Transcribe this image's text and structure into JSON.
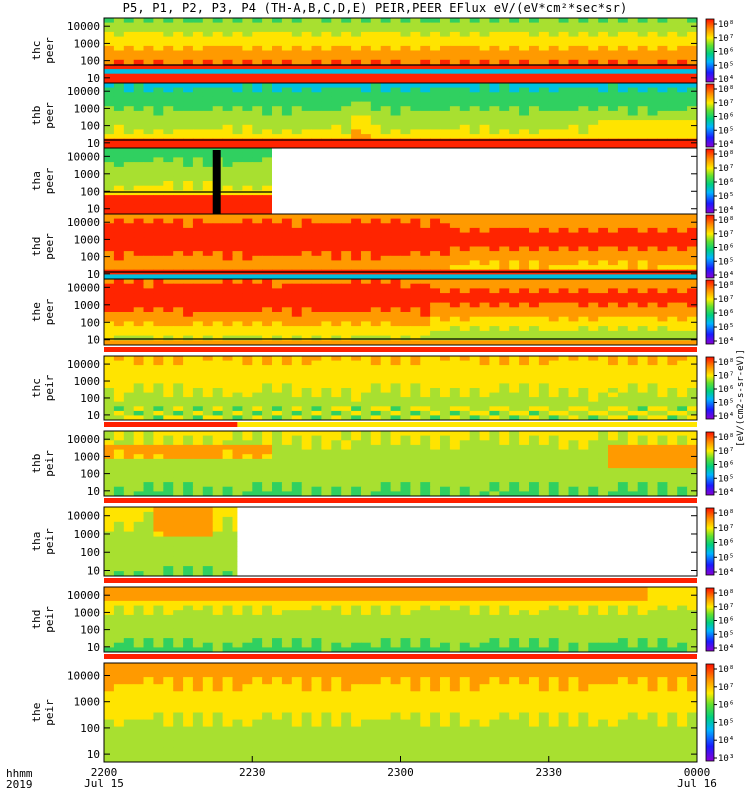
{
  "title": "P5, P1, P2, P3, P4 (TH-A,B,C,D,E) PEIR,PEER EFlux eV/(eV*cm²*sec*sr)",
  "colorbar_units": "[eV/(cm2-s-sr-eV)]",
  "x_axis": {
    "header_row1": "hhmm",
    "header_row2": "2019",
    "ticks": [
      {
        "label": "2200",
        "sub": "Jul 15",
        "t": 0
      },
      {
        "label": "2230",
        "sub": "",
        "t": 30
      },
      {
        "label": "2300",
        "sub": "",
        "t": 60
      },
      {
        "label": "2330",
        "sub": "",
        "t": 90
      },
      {
        "label": "0000",
        "sub": "Jul 16",
        "t": 120
      }
    ]
  },
  "colorbar_ticks": [
    "10⁸",
    "10⁷",
    "10⁶",
    "10⁵",
    "10⁴",
    "10³"
  ],
  "chart_data": {
    "type": "heatmap",
    "x_unit": "minutes after 2019-07-15 22:00 UT",
    "xlim": [
      0,
      120
    ],
    "ylim": [
      5,
      30000
    ],
    "y_scale": "log",
    "y_ticks": [
      "10000",
      "1000",
      "100",
      "10"
    ],
    "panels": [
      {
        "label": [
          "thc",
          "peer"
        ],
        "coverage_end_min": 120,
        "profile": "electron_a",
        "bar": ""
      },
      {
        "label": [
          "thb",
          "peer"
        ],
        "coverage_end_min": 120,
        "profile": "electron_b",
        "bar": ""
      },
      {
        "label": [
          "tha",
          "peer"
        ],
        "coverage_end_min": 34,
        "profile": "electron_c",
        "bar": ""
      },
      {
        "label": [
          "thd",
          "peer"
        ],
        "coverage_end_min": 120,
        "profile": "electron_d",
        "bar": ""
      },
      {
        "label": [
          "the",
          "peer"
        ],
        "coverage_end_min": 120,
        "profile": "electron_e",
        "bar": ""
      },
      {
        "label": [
          "thc",
          "peir"
        ],
        "coverage_end_min": 120,
        "profile": "ion_c",
        "bar": "red"
      },
      {
        "label": [
          "thb",
          "peir"
        ],
        "coverage_end_min": 120,
        "profile": "ion_b",
        "bar": "redyellow"
      },
      {
        "label": [
          "tha",
          "peir"
        ],
        "coverage_end_min": 27,
        "profile": "ion_a",
        "bar": "red"
      },
      {
        "label": [
          "thd",
          "peir"
        ],
        "coverage_end_min": 120,
        "profile": "ion_d",
        "bar": "red"
      },
      {
        "label": [
          "the",
          "peir"
        ],
        "coverage_end_min": 120,
        "profile": "ion_e",
        "bar": "red"
      }
    ]
  },
  "colors": {
    "red": "#ff2000",
    "orange": "#ff8c00",
    "yellow": "#ffe600",
    "green": "#4cdc3c",
    "cyan": "#00c8c8",
    "blue": "#0050ff",
    "black": "#000000"
  }
}
